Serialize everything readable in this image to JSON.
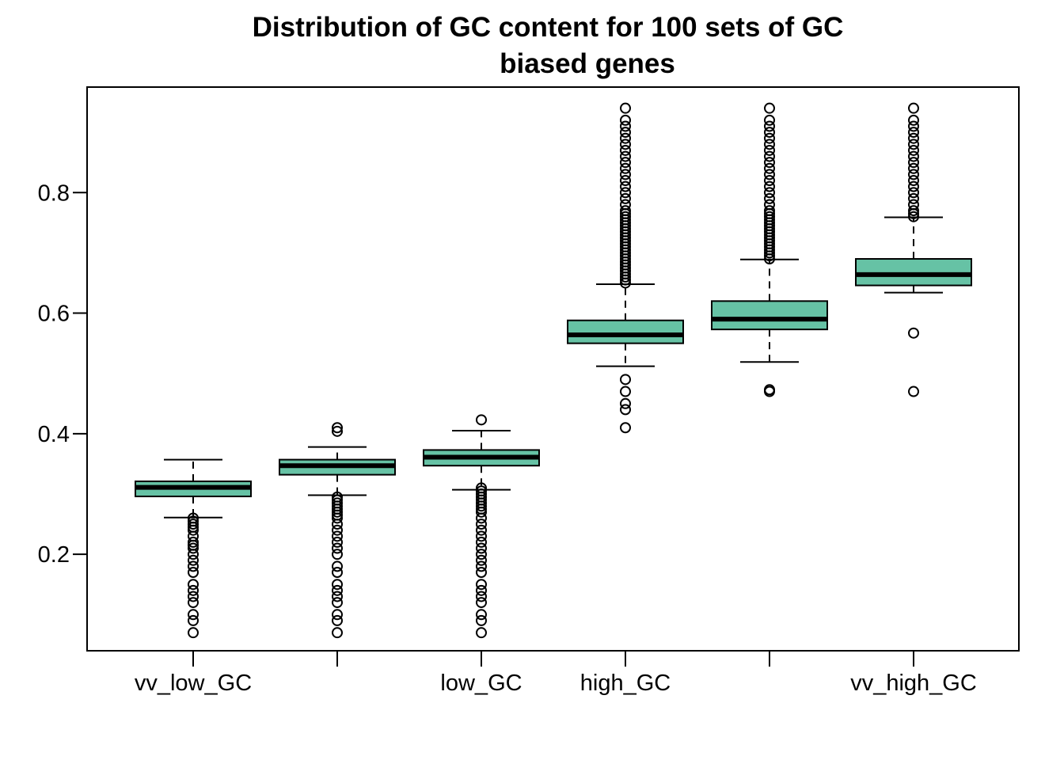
{
  "chart_data": {
    "type": "box",
    "title_line1": "Distribution of GC content for 100 sets of GC",
    "title_line2": "biased genes",
    "xlabel": "",
    "ylabel": "",
    "ylim": [
      0.04,
      0.975
    ],
    "yticks": [
      0.2,
      0.4,
      0.6,
      0.8
    ],
    "ytick_labels": [
      "0.2",
      "0.4",
      "0.6",
      "0.8"
    ],
    "grid": false,
    "box_color": "#66c2a5",
    "categories": [
      "vv_low_GC",
      "",
      "low_GC",
      "high_GC",
      "",
      "vv_high_GC"
    ],
    "boxes": [
      {
        "label": "vv_low_GC",
        "whisker_low": 0.261,
        "q1": 0.296,
        "median": 0.311,
        "q3": 0.321,
        "whisker_high": 0.357,
        "outliers": [
          0.07,
          0.09,
          0.1,
          0.12,
          0.13,
          0.14,
          0.15,
          0.17,
          0.18,
          0.19,
          0.2,
          0.21,
          0.215,
          0.22,
          0.23,
          0.24,
          0.245,
          0.25,
          0.255,
          0.26
        ]
      },
      {
        "label": "",
        "whisker_low": 0.298,
        "q1": 0.332,
        "median": 0.347,
        "q3": 0.357,
        "whisker_high": 0.378,
        "outliers": [
          0.07,
          0.09,
          0.1,
          0.12,
          0.13,
          0.14,
          0.15,
          0.17,
          0.18,
          0.2,
          0.21,
          0.22,
          0.23,
          0.24,
          0.25,
          0.26,
          0.265,
          0.27,
          0.275,
          0.28,
          0.285,
          0.29,
          0.295,
          0.404,
          0.41
        ]
      },
      {
        "label": "low_GC",
        "whisker_low": 0.307,
        "q1": 0.347,
        "median": 0.361,
        "q3": 0.373,
        "whisker_high": 0.405,
        "outliers": [
          0.07,
          0.09,
          0.1,
          0.12,
          0.13,
          0.14,
          0.15,
          0.17,
          0.18,
          0.19,
          0.2,
          0.21,
          0.22,
          0.23,
          0.24,
          0.25,
          0.26,
          0.27,
          0.275,
          0.28,
          0.285,
          0.29,
          0.295,
          0.3,
          0.305,
          0.31,
          0.423
        ]
      },
      {
        "label": "high_GC",
        "whisker_low": 0.512,
        "q1": 0.55,
        "median": 0.564,
        "q3": 0.588,
        "whisker_high": 0.648,
        "outliers": [
          0.41,
          0.44,
          0.45,
          0.47,
          0.49,
          0.65,
          0.655,
          0.66,
          0.665,
          0.67,
          0.675,
          0.68,
          0.685,
          0.69,
          0.695,
          0.7,
          0.705,
          0.71,
          0.715,
          0.72,
          0.725,
          0.73,
          0.735,
          0.74,
          0.745,
          0.75,
          0.755,
          0.76,
          0.765,
          0.77,
          0.78,
          0.79,
          0.8,
          0.81,
          0.82,
          0.83,
          0.84,
          0.85,
          0.86,
          0.87,
          0.88,
          0.89,
          0.9,
          0.91,
          0.92,
          0.94
        ]
      },
      {
        "label": "",
        "whisker_low": 0.519,
        "q1": 0.573,
        "median": 0.59,
        "q3": 0.62,
        "whisker_high": 0.689,
        "outliers": [
          0.47,
          0.473,
          0.69,
          0.695,
          0.7,
          0.705,
          0.71,
          0.715,
          0.72,
          0.725,
          0.73,
          0.735,
          0.74,
          0.745,
          0.75,
          0.755,
          0.76,
          0.765,
          0.77,
          0.78,
          0.79,
          0.8,
          0.81,
          0.82,
          0.83,
          0.84,
          0.85,
          0.86,
          0.87,
          0.88,
          0.89,
          0.9,
          0.91,
          0.92,
          0.94
        ]
      },
      {
        "label": "vv_high_GC",
        "whisker_low": 0.634,
        "q1": 0.646,
        "median": 0.664,
        "q3": 0.69,
        "whisker_high": 0.759,
        "outliers": [
          0.47,
          0.567,
          0.76,
          0.765,
          0.77,
          0.78,
          0.79,
          0.8,
          0.81,
          0.82,
          0.83,
          0.84,
          0.85,
          0.86,
          0.87,
          0.88,
          0.89,
          0.9,
          0.91,
          0.92,
          0.94
        ]
      }
    ]
  }
}
